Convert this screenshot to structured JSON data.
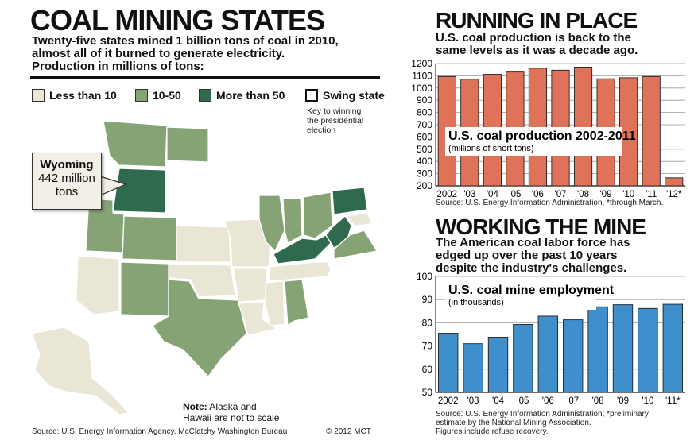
{
  "map_section": {
    "title": "COAL MINING STATES",
    "subtitle_lines": [
      "Twenty-five states mined 1 billion tons of coal in 2010,",
      "almost all of it burned to generate electricity.",
      "Production in millions of tons:"
    ],
    "legend": [
      {
        "label": "Less than 10",
        "color": "#e9e6d6"
      },
      {
        "label": "10-50",
        "color": "#86a375"
      },
      {
        "label": "More than 50",
        "color": "#2f6a4e"
      },
      {
        "label": "Swing state",
        "color": "#ffffff"
      }
    ],
    "swing_note_lines": [
      "Key to winning",
      "the presidential",
      "election"
    ],
    "callout": {
      "state": "Wyoming",
      "value_line1": "442 million",
      "value_line2": "tons"
    },
    "note_bold": "Note:",
    "note_rest_line1": " Alaska and",
    "note_line2": "Hawaii are not to scale",
    "source": "Source: U.S. Energy Information Agency, McClatchy Washington Bureau",
    "copyright": "© 2012 MCT",
    "colors": {
      "none": "#ffffff",
      "low": "#e9e6d6",
      "mid": "#86a375",
      "high": "#2f6a4e"
    }
  },
  "production_section": {
    "title": "RUNNING IN PLACE",
    "subtitle_lines": [
      "U.S. coal production is back to the",
      "same levels as it was a decade ago."
    ],
    "source": "Source: U.S. Energy Information Administration, *through March."
  },
  "employment_section": {
    "title": "WORKING THE MINE",
    "subtitle_lines": [
      "The American coal labor force has",
      "edged up over the past 10 years",
      "despite the industry's challenges."
    ],
    "source_lines": [
      "Source: U.S. Energy Information Administration; *preliminary",
      "estimate by the National Mining Association.",
      "Figures include refuse recovery."
    ]
  },
  "chart_data": [
    {
      "type": "bar",
      "title": "U.S. coal production 2002-2011",
      "subtitle": "(millions of short tons)",
      "categories": [
        "2002",
        "'03",
        "'04",
        "'05",
        "'06",
        "'07",
        "'08",
        "'09",
        "'10",
        "'11",
        "'12*"
      ],
      "values": [
        1094,
        1072,
        1112,
        1131,
        1162,
        1146,
        1171,
        1075,
        1084,
        1094,
        266
      ],
      "ylim": [
        200,
        1200
      ],
      "yticks": [
        200,
        300,
        400,
        500,
        600,
        700,
        800,
        900,
        1000,
        1100,
        1200
      ],
      "grid": true,
      "bar_color": "#df735a"
    },
    {
      "type": "bar",
      "title": "U.S. coal mine employment",
      "subtitle": "(in thousands)",
      "categories": [
        "2002",
        "'03",
        "'04",
        "'05",
        "'06",
        "'07",
        "'08",
        "'09",
        "'10",
        "'11*"
      ],
      "values": [
        75.5,
        71,
        73.8,
        79.3,
        82.9,
        81.3,
        86.9,
        87.8,
        86.2,
        88
      ],
      "ylim": [
        50,
        100
      ],
      "yticks": [
        50,
        60,
        70,
        80,
        90,
        100
      ],
      "grid": true,
      "bar_color": "#3f8fcc"
    }
  ]
}
